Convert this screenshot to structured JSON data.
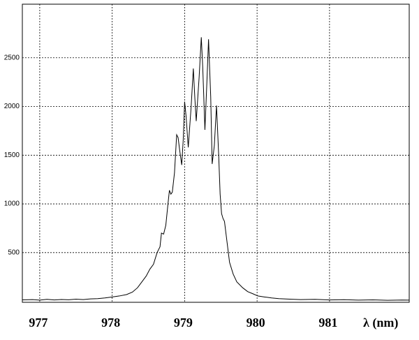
{
  "chart_data": {
    "type": "line",
    "x_label": "λ (nm)",
    "x": [
      976.76,
      976.9,
      977.0,
      977.1,
      977.2,
      977.3,
      977.4,
      977.5,
      977.6,
      977.7,
      977.8,
      977.9,
      978.0,
      978.1,
      978.2,
      978.28,
      978.35,
      978.42,
      978.47,
      978.52,
      978.57,
      978.62,
      978.66,
      978.68,
      978.71,
      978.74,
      978.77,
      978.79,
      978.81,
      978.83,
      978.86,
      978.89,
      978.91,
      978.93,
      978.96,
      978.98,
      979.0,
      979.02,
      979.05,
      979.09,
      979.12,
      979.14,
      979.16,
      979.2,
      979.23,
      979.25,
      979.28,
      979.31,
      979.33,
      979.36,
      979.38,
      979.41,
      979.44,
      979.47,
      979.49,
      979.51,
      979.53,
      979.55,
      979.57,
      979.6,
      979.62,
      979.67,
      979.72,
      979.8,
      979.87,
      979.95,
      980.01,
      980.1,
      980.2,
      980.3,
      980.45,
      980.6,
      980.8,
      981.0,
      981.2,
      981.4,
      981.6,
      981.8,
      982.0,
      982.1
    ],
    "values": [
      15,
      18,
      12,
      20,
      14,
      19,
      16,
      22,
      18,
      25,
      28,
      35,
      45,
      55,
      70,
      95,
      140,
      210,
      260,
      330,
      380,
      500,
      560,
      700,
      690,
      780,
      1000,
      1140,
      1100,
      1120,
      1320,
      1710,
      1680,
      1560,
      1400,
      1650,
      2050,
      1900,
      1580,
      2000,
      2390,
      2100,
      1850,
      2300,
      2710,
      2400,
      1760,
      2300,
      2690,
      2100,
      1410,
      1600,
      2010,
      1500,
      1100,
      900,
      850,
      820,
      700,
      520,
      400,
      280,
      200,
      140,
      100,
      75,
      55,
      45,
      35,
      28,
      22,
      18,
      20,
      14,
      17,
      12,
      15,
      11,
      13,
      12
    ],
    "color": "#000000",
    "xlim": [
      976.76,
      982.1
    ],
    "xticks": [
      977,
      978,
      979,
      980,
      981
    ],
    "ylim": [
      -10,
      3050
    ],
    "yticks": [
      500,
      1000,
      1500,
      2000,
      2500
    ],
    "grid": true
  }
}
